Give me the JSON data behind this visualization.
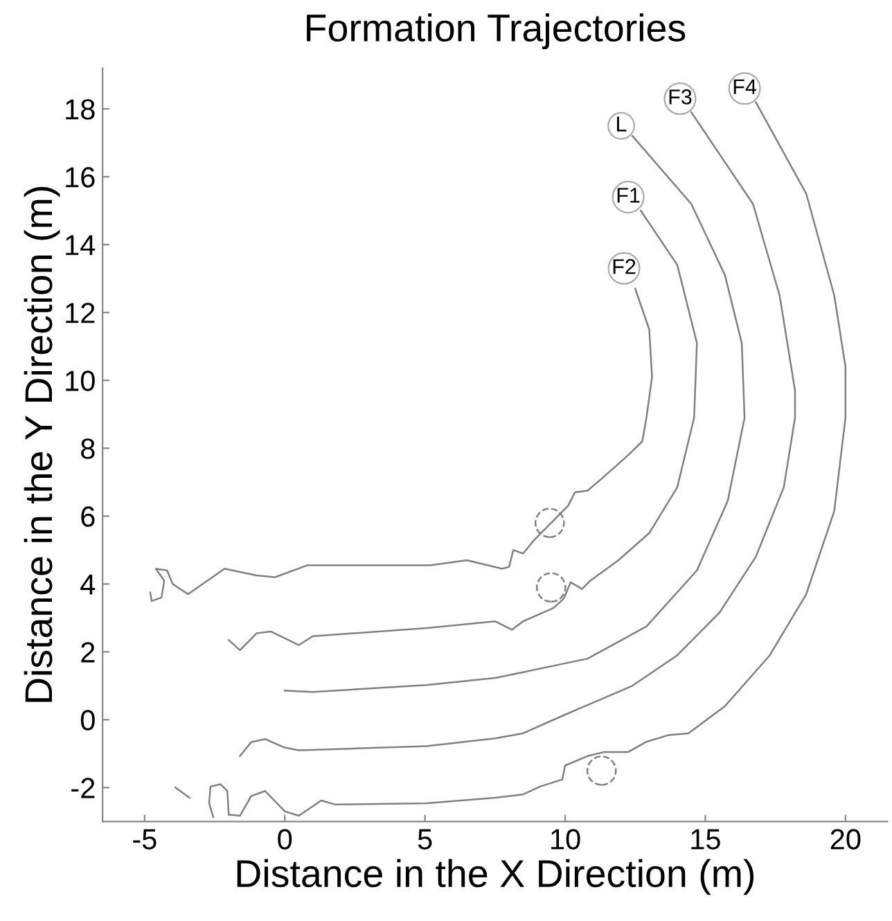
{
  "chart_data": {
    "type": "line",
    "title": "Formation Trajectories",
    "xlabel": "Distance in the X Direction (m)",
    "ylabel": "Distance in the Y Direction (m)",
    "xlim": [
      -6.5,
      21.5
    ],
    "ylim": [
      -3,
      19.2
    ],
    "xticks": [
      -5,
      0,
      5,
      10,
      15,
      20
    ],
    "yticks": [
      -2,
      0,
      2,
      4,
      6,
      8,
      10,
      12,
      14,
      16,
      18
    ],
    "grid": false,
    "legend": false,
    "marker": "none",
    "line_style": "solid",
    "series": [
      {
        "color": "#808080",
        "x": [
          16.8,
          18.6,
          19.6,
          20.0,
          20.0,
          19.6,
          18.6,
          17.3,
          15.7,
          14.4,
          13.7,
          12.9,
          12.25,
          11.4,
          10.8,
          10.0,
          9.9,
          9.1,
          8.5,
          7.5,
          5.05,
          1.8,
          1.3,
          0.5,
          0,
          -0.7,
          -1.2,
          -1.6,
          -2.0,
          -2.05,
          -2.3,
          -2.65,
          -2.7,
          -2.55,
          null,
          -3.4,
          -3.9
        ],
        "values": [
          18.2,
          15.5,
          12.5,
          10.4,
          8.9,
          6.15,
          3.7,
          1.9,
          0.4,
          -0.4,
          -0.45,
          -0.65,
          -0.95,
          -0.95,
          -1.07,
          -1.35,
          -1.76,
          -1.97,
          -2.2,
          -2.3,
          -2.46,
          -2.5,
          -2.38,
          -2.83,
          -2.7,
          -2.1,
          -2.25,
          -2.83,
          -2.8,
          -2.1,
          -1.9,
          -1.97,
          -2.46,
          -2.87,
          null,
          -2.3,
          -2.0
        ]
      },
      {
        "color": "#808080",
        "x": [
          14.5,
          16.7,
          17.65,
          18.2,
          18.2,
          17.8,
          16.8,
          15.5,
          14.0,
          12.4,
          10.0,
          8.5,
          7.5,
          5.05,
          0.5,
          0,
          -0.7,
          -1.2,
          -1.6
        ],
        "values": [
          17.9,
          15.2,
          12.5,
          9.7,
          8.9,
          6.85,
          4.8,
          3.15,
          1.9,
          1.0,
          0.15,
          -0.4,
          -0.55,
          -0.78,
          -0.9,
          -0.82,
          -0.57,
          -0.66,
          -1.07
        ]
      },
      {
        "color": "#808080",
        "x": [
          12.4,
          14.5,
          15.7,
          16.3,
          16.4,
          15.8,
          14.7,
          12.9,
          10.8,
          8.5,
          7.5,
          5.05,
          1.0,
          0
        ],
        "values": [
          17.2,
          15.2,
          13.1,
          11.1,
          8.9,
          6.45,
          4.4,
          2.75,
          1.8,
          1.4,
          1.23,
          1.02,
          0.82,
          0.86
        ]
      },
      {
        "color": "#808080",
        "x": [
          12.7,
          14.0,
          14.7,
          14.6,
          14.0,
          13.0,
          11.9,
          10.9,
          10.6,
          10.2,
          9.95,
          9.6,
          8.5,
          8.1,
          7.5,
          5.05,
          1.0,
          0.5,
          0,
          -0.5,
          -1.0,
          -1.6,
          -2.0
        ],
        "values": [
          15.0,
          13.4,
          11.1,
          8.9,
          6.85,
          5.5,
          4.7,
          4.1,
          3.85,
          4.05,
          3.57,
          3.3,
          2.9,
          2.65,
          2.9,
          2.7,
          2.46,
          2.2,
          2.4,
          2.6,
          2.55,
          2.05,
          2.35
        ]
      },
      {
        "color": "#808080",
        "x": [
          12.5,
          13.0,
          13.1,
          12.9,
          12.75,
          12.25,
          11.3,
          10.8,
          10.35,
          10.1,
          8.9,
          8.5,
          8.15,
          8.0,
          7.75,
          6.5,
          5.2,
          0.8,
          -0.35,
          -1.0,
          -2.15,
          -3.45,
          -4.0,
          -4.2,
          -4.6,
          -4.3,
          -4.4,
          -4.75,
          -4.8
        ],
        "values": [
          12.7,
          11.5,
          10.1,
          8.9,
          8.2,
          7.8,
          7.1,
          6.75,
          6.7,
          6.3,
          5.3,
          4.9,
          5.0,
          4.5,
          4.45,
          4.7,
          4.55,
          4.55,
          4.2,
          4.25,
          4.45,
          3.7,
          4.0,
          4.4,
          4.45,
          4.1,
          3.6,
          3.5,
          3.75
        ]
      },
      {
        "type": "scatter",
        "color": "#808080",
        "marker": "circle",
        "x": [
          9.45,
          9.5,
          11.3
        ],
        "values": [
          5.8,
          3.9,
          -1.5
        ]
      }
    ],
    "annotations": [
      {
        "text": "F4",
        "x": 16.4,
        "y": 18.6
      },
      {
        "text": "F3",
        "x": 14.1,
        "y": 18.3
      },
      {
        "text": "L",
        "x": 12.0,
        "y": 17.5
      },
      {
        "text": "F1",
        "x": 12.25,
        "y": 15.4
      },
      {
        "text": "F2",
        "x": 12.1,
        "y": 13.3
      }
    ]
  }
}
